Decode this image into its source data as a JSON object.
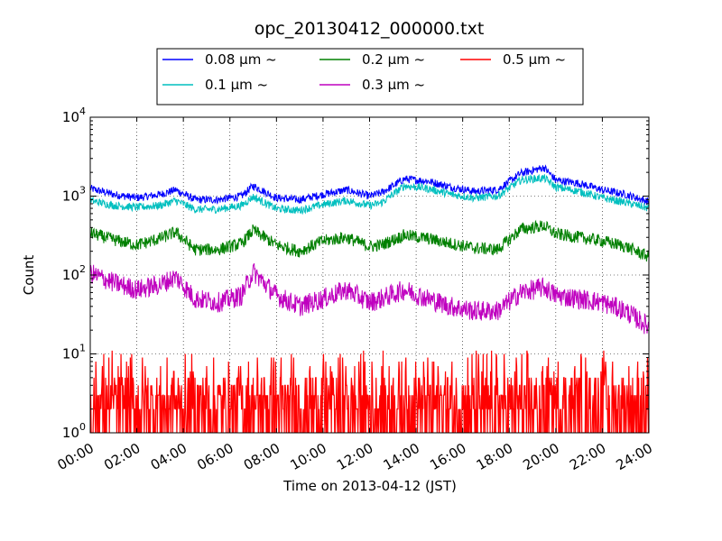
{
  "chart_data": {
    "type": "line",
    "title": "opc_20130412_000000.txt",
    "xlabel": "Time on 2013-04-12 (JST)",
    "ylabel": "Count",
    "yscale": "log",
    "ylim": [
      1,
      10000
    ],
    "y_ticks": [
      {
        "value": 1,
        "base": "10",
        "exp": "0"
      },
      {
        "value": 10,
        "base": "10",
        "exp": "1"
      },
      {
        "value": 100,
        "base": "10",
        "exp": "2"
      },
      {
        "value": 1000,
        "base": "10",
        "exp": "3"
      },
      {
        "value": 10000,
        "base": "10",
        "exp": "4"
      }
    ],
    "xlim": [
      "00:00",
      "24:00"
    ],
    "x_ticks": [
      "00:00",
      "02:00",
      "04:00",
      "06:00",
      "08:00",
      "10:00",
      "12:00",
      "14:00",
      "16:00",
      "18:00",
      "20:00",
      "22:00",
      "24:00"
    ],
    "grid": true,
    "legend_position": "top-center",
    "series": [
      {
        "name": "0.08 μm ~",
        "color": "#0000ff",
        "x": [
          "00:00",
          "01:00",
          "02:00",
          "03:00",
          "03:40",
          "04:30",
          "05:30",
          "06:30",
          "07:00",
          "08:00",
          "09:00",
          "10:00",
          "11:00",
          "12:00",
          "12:30",
          "13:30",
          "14:30",
          "15:30",
          "16:30",
          "17:30",
          "18:30",
          "19:30",
          "20:00",
          "21:00",
          "22:00",
          "23:00",
          "24:00"
        ],
        "values": [
          1250,
          1050,
          950,
          1050,
          1200,
          900,
          900,
          1000,
          1350,
          950,
          900,
          1050,
          1200,
          1000,
          1100,
          1650,
          1550,
          1300,
          1150,
          1200,
          1950,
          2300,
          1600,
          1450,
          1200,
          1050,
          850
        ]
      },
      {
        "name": "0.1 μm ~",
        "color": "#00bfbf",
        "x": [
          "00:00",
          "01:00",
          "02:00",
          "03:00",
          "03:40",
          "04:30",
          "05:30",
          "06:30",
          "07:00",
          "08:00",
          "09:00",
          "10:00",
          "11:00",
          "12:00",
          "12:30",
          "13:30",
          "14:30",
          "15:30",
          "16:30",
          "17:30",
          "18:30",
          "19:30",
          "20:00",
          "21:00",
          "22:00",
          "23:00",
          "24:00"
        ],
        "values": [
          880,
          760,
          720,
          760,
          880,
          680,
          680,
          760,
          980,
          690,
          660,
          780,
          880,
          760,
          820,
          1350,
          1250,
          1050,
          950,
          1000,
          1600,
          1700,
          1300,
          1150,
          950,
          830,
          700
        ]
      },
      {
        "name": "0.2 μm ~",
        "color": "#008000",
        "x": [
          "00:00",
          "01:00",
          "02:00",
          "03:00",
          "03:40",
          "04:30",
          "05:30",
          "06:30",
          "07:00",
          "08:00",
          "09:00",
          "10:00",
          "11:00",
          "12:00",
          "12:30",
          "13:30",
          "14:30",
          "15:30",
          "16:30",
          "17:30",
          "18:30",
          "19:30",
          "20:00",
          "21:00",
          "22:00",
          "23:00",
          "24:00"
        ],
        "values": [
          340,
          280,
          240,
          290,
          350,
          210,
          210,
          250,
          370,
          240,
          200,
          270,
          300,
          230,
          240,
          320,
          290,
          250,
          220,
          210,
          380,
          420,
          330,
          300,
          270,
          230,
          170
        ]
      },
      {
        "name": "0.3 μm ~",
        "color": "#bf00bf",
        "x": [
          "00:00",
          "01:00",
          "02:00",
          "03:00",
          "03:40",
          "04:30",
          "05:30",
          "06:30",
          "07:00",
          "08:00",
          "09:00",
          "10:00",
          "11:00",
          "12:00",
          "12:30",
          "13:30",
          "14:30",
          "15:30",
          "16:30",
          "17:30",
          "18:30",
          "19:30",
          "20:00",
          "21:00",
          "22:00",
          "23:00",
          "24:00"
        ],
        "values": [
          105,
          80,
          65,
          75,
          95,
          50,
          45,
          55,
          110,
          55,
          40,
          50,
          65,
          45,
          50,
          65,
          50,
          40,
          35,
          35,
          60,
          70,
          55,
          50,
          45,
          35,
          22
        ]
      },
      {
        "name": "0.5 μm ~",
        "color": "#ff0000",
        "x": [
          "00:00",
          "01:00",
          "02:00",
          "03:00",
          "03:40",
          "04:30",
          "05:30",
          "06:30",
          "07:00",
          "08:00",
          "09:00",
          "10:00",
          "11:00",
          "12:00",
          "12:30",
          "13:30",
          "14:30",
          "15:30",
          "16:30",
          "17:30",
          "18:30",
          "19:30",
          "20:00",
          "21:00",
          "22:00",
          "23:00",
          "24:00"
        ],
        "values": [
          3,
          3,
          2,
          3,
          3,
          2,
          2,
          2,
          3,
          2,
          2,
          2,
          3,
          2,
          3,
          3,
          3,
          2,
          2,
          2,
          3,
          3,
          3,
          3,
          2,
          2,
          2
        ]
      }
    ]
  }
}
